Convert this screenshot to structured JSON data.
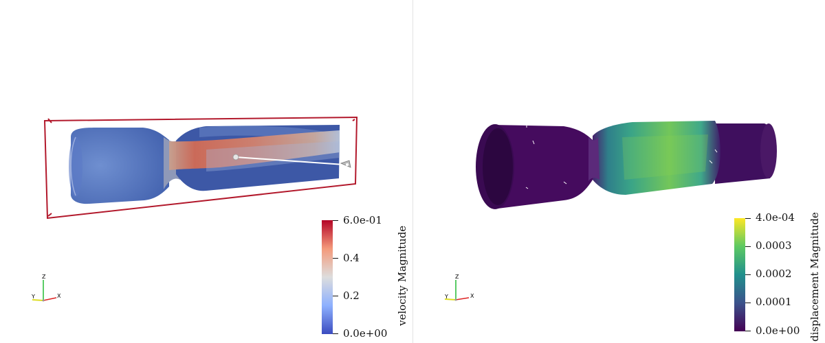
{
  "left_view": {
    "colorbar": {
      "title": "velocity Magnitude",
      "ticks": [
        "6.0e-01",
        "0.4",
        "0.2",
        "0.0e+00"
      ],
      "colormap": "Cool to Warm",
      "stops": [
        "#3b4cc0",
        "#8db0fe",
        "#dddddd",
        "#f49a7b",
        "#b40426"
      ]
    },
    "outline_color": "#b2182b",
    "axes": {
      "x": "X",
      "y": "Y",
      "z": "Z"
    }
  },
  "right_view": {
    "colorbar": {
      "title": "displacement Magnitude",
      "ticks": [
        "4.0e-04",
        "0.0003",
        "0.0002",
        "0.0001",
        "0.0e+00"
      ],
      "colormap": "Viridis",
      "stops": [
        "#440154",
        "#3b528b",
        "#21908d",
        "#5dc962",
        "#fde725"
      ]
    },
    "axes": {
      "x": "X",
      "y": "Y",
      "z": "Z"
    }
  }
}
